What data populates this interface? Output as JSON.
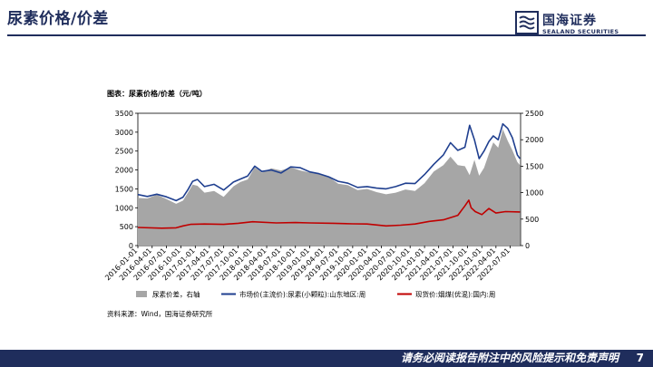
{
  "slide": {
    "title": "尿素价格/价差",
    "page_number": "7",
    "footer_disclaimer": "请务必阅读报告附注中的风险提示和免责声明"
  },
  "brand": {
    "name_cn": "国海证券",
    "name_en": "SEALAND SECURITIES",
    "color": "#1f2d5c"
  },
  "chart_title": "图表：尿素价格/价差（元/吨）",
  "source": "资料来源：Wind，国海证券研究所",
  "chart_data": {
    "type": "line",
    "x_tick_labels": [
      "2016-01-01",
      "2016-04-01",
      "2016-07-01",
      "2016-10-01",
      "2017-01-01",
      "2017-04-01",
      "2017-07-01",
      "2017-10-01",
      "2018-01-01",
      "2018-04-01",
      "2018-07-01",
      "2018-10-01",
      "2019-01-01",
      "2019-04-01",
      "2019-07-01",
      "2019-10-01",
      "2020-01-01",
      "2020-04-01",
      "2020-07-01",
      "2020-10-01",
      "2021-01-01",
      "2021-04-01",
      "2021-07-01",
      "2021-10-01",
      "2022-01-01",
      "2022-04-01",
      "2022-07-01"
    ],
    "x_range": [
      "2016-01-01",
      "2022-09-05"
    ],
    "y_left": {
      "range": [
        0,
        3500
      ],
      "ticks": [
        0,
        500,
        1000,
        1500,
        2000,
        2500,
        3000,
        3500
      ]
    },
    "y_right": {
      "range": [
        0,
        2500
      ],
      "ticks": [
        0,
        500,
        1000,
        1500,
        2000,
        2500
      ]
    },
    "legend_position": "bottom",
    "grid": false,
    "series": [
      {
        "name": "尿素价差，右轴",
        "kind": "area",
        "axis": "right",
        "color": "#a6a6a6",
        "points": [
          [
            "2016-01-01",
            900
          ],
          [
            "2016-03-01",
            890
          ],
          [
            "2016-05-01",
            960
          ],
          [
            "2016-07-01",
            880
          ],
          [
            "2016-09-01",
            790
          ],
          [
            "2016-10-15",
            850
          ],
          [
            "2016-11-15",
            1000
          ],
          [
            "2016-12-15",
            1150
          ],
          [
            "2017-01-15",
            1130
          ],
          [
            "2017-03-01",
            1000
          ],
          [
            "2017-05-01",
            1030
          ],
          [
            "2017-07-01",
            920
          ],
          [
            "2017-09-01",
            1120
          ],
          [
            "2017-10-15",
            1200
          ],
          [
            "2017-12-01",
            1250
          ],
          [
            "2018-01-15",
            1480
          ],
          [
            "2018-03-01",
            1380
          ],
          [
            "2018-05-01",
            1460
          ],
          [
            "2018-07-01",
            1420
          ],
          [
            "2018-09-01",
            1480
          ],
          [
            "2018-11-01",
            1420
          ],
          [
            "2019-01-01",
            1380
          ],
          [
            "2019-03-01",
            1350
          ],
          [
            "2019-05-01",
            1300
          ],
          [
            "2019-07-01",
            1170
          ],
          [
            "2019-09-01",
            1140
          ],
          [
            "2019-11-01",
            1050
          ],
          [
            "2020-01-01",
            1070
          ],
          [
            "2020-03-01",
            1010
          ],
          [
            "2020-05-01",
            970
          ],
          [
            "2020-07-01",
            1000
          ],
          [
            "2020-09-01",
            1060
          ],
          [
            "2020-11-01",
            1030
          ],
          [
            "2021-01-01",
            1180
          ],
          [
            "2021-03-01",
            1400
          ],
          [
            "2021-05-01",
            1520
          ],
          [
            "2021-06-15",
            1680
          ],
          [
            "2021-08-01",
            1520
          ],
          [
            "2021-09-15",
            1500
          ],
          [
            "2021-10-15",
            1330
          ],
          [
            "2021-11-15",
            1620
          ],
          [
            "2021-12-15",
            1320
          ],
          [
            "2022-01-15",
            1470
          ],
          [
            "2022-02-15",
            1730
          ],
          [
            "2022-03-15",
            1950
          ],
          [
            "2022-04-15",
            1850
          ],
          [
            "2022-05-15",
            2200
          ],
          [
            "2022-06-15",
            1980
          ],
          [
            "2022-07-15",
            1800
          ],
          [
            "2022-08-15",
            1580
          ],
          [
            "2022-09-01",
            1520
          ]
        ]
      },
      {
        "name": "市场价(主流价):尿素(小颗粒):山东地区:周",
        "kind": "line",
        "axis": "left",
        "color": "#1f3f8f",
        "points": [
          [
            "2016-01-01",
            1350
          ],
          [
            "2016-03-01",
            1300
          ],
          [
            "2016-05-01",
            1360
          ],
          [
            "2016-07-01",
            1290
          ],
          [
            "2016-09-01",
            1190
          ],
          [
            "2016-10-15",
            1280
          ],
          [
            "2016-11-15",
            1480
          ],
          [
            "2016-12-15",
            1700
          ],
          [
            "2017-01-15",
            1750
          ],
          [
            "2017-03-01",
            1560
          ],
          [
            "2017-05-01",
            1620
          ],
          [
            "2017-07-01",
            1470
          ],
          [
            "2017-09-01",
            1680
          ],
          [
            "2017-10-15",
            1760
          ],
          [
            "2017-12-01",
            1840
          ],
          [
            "2018-01-15",
            2100
          ],
          [
            "2018-03-01",
            1960
          ],
          [
            "2018-05-01",
            2000
          ],
          [
            "2018-07-01",
            1920
          ],
          [
            "2018-09-01",
            2080
          ],
          [
            "2018-11-01",
            2060
          ],
          [
            "2019-01-01",
            1950
          ],
          [
            "2019-03-01",
            1900
          ],
          [
            "2019-05-01",
            1820
          ],
          [
            "2019-07-01",
            1700
          ],
          [
            "2019-09-01",
            1650
          ],
          [
            "2019-11-01",
            1540
          ],
          [
            "2020-01-01",
            1560
          ],
          [
            "2020-03-01",
            1520
          ],
          [
            "2020-05-01",
            1500
          ],
          [
            "2020-07-01",
            1560
          ],
          [
            "2020-09-01",
            1650
          ],
          [
            "2020-11-01",
            1640
          ],
          [
            "2021-01-01",
            1880
          ],
          [
            "2021-03-01",
            2150
          ],
          [
            "2021-05-01",
            2400
          ],
          [
            "2021-06-15",
            2720
          ],
          [
            "2021-08-01",
            2520
          ],
          [
            "2021-09-15",
            2600
          ],
          [
            "2021-10-15",
            3180
          ],
          [
            "2021-11-15",
            2800
          ],
          [
            "2021-12-15",
            2300
          ],
          [
            "2022-01-15",
            2500
          ],
          [
            "2022-02-15",
            2750
          ],
          [
            "2022-03-15",
            2900
          ],
          [
            "2022-04-15",
            2800
          ],
          [
            "2022-05-15",
            3220
          ],
          [
            "2022-06-15",
            3100
          ],
          [
            "2022-07-15",
            2850
          ],
          [
            "2022-08-15",
            2400
          ],
          [
            "2022-09-01",
            2300
          ]
        ]
      },
      {
        "name": "现货价:烟煤(优混):国内:周",
        "kind": "line",
        "axis": "left",
        "color": "#c00000",
        "points": [
          [
            "2016-01-01",
            480
          ],
          [
            "2016-06-01",
            460
          ],
          [
            "2016-09-01",
            470
          ],
          [
            "2016-10-15",
            520
          ],
          [
            "2016-12-01",
            560
          ],
          [
            "2017-03-01",
            570
          ],
          [
            "2017-07-01",
            560
          ],
          [
            "2017-10-01",
            590
          ],
          [
            "2018-01-01",
            630
          ],
          [
            "2018-06-01",
            600
          ],
          [
            "2018-10-01",
            610
          ],
          [
            "2019-01-01",
            600
          ],
          [
            "2019-06-01",
            590
          ],
          [
            "2019-10-01",
            575
          ],
          [
            "2020-01-01",
            570
          ],
          [
            "2020-05-01",
            520
          ],
          [
            "2020-08-01",
            540
          ],
          [
            "2020-11-01",
            570
          ],
          [
            "2021-02-01",
            640
          ],
          [
            "2021-05-01",
            680
          ],
          [
            "2021-08-01",
            800
          ],
          [
            "2021-09-15",
            1050
          ],
          [
            "2021-10-10",
            1200
          ],
          [
            "2021-10-25",
            1000
          ],
          [
            "2021-11-20",
            900
          ],
          [
            "2022-01-01",
            820
          ],
          [
            "2022-02-15",
            980
          ],
          [
            "2022-04-01",
            860
          ],
          [
            "2022-06-01",
            900
          ],
          [
            "2022-09-01",
            890
          ]
        ]
      }
    ]
  }
}
